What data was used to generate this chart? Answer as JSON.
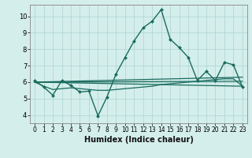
{
  "xlabel": "Humidex (Indice chaleur)",
  "xlim": [
    -0.5,
    23.5
  ],
  "ylim": [
    3.5,
    10.7
  ],
  "yticks": [
    4,
    5,
    6,
    7,
    8,
    9,
    10
  ],
  "xticks": [
    0,
    1,
    2,
    3,
    4,
    5,
    6,
    7,
    8,
    9,
    10,
    11,
    12,
    13,
    14,
    15,
    16,
    17,
    18,
    19,
    20,
    21,
    22,
    23
  ],
  "bg_color": "#d4eeeb",
  "grid_color": "#b2d8d4",
  "line_color": "#1a6b5e",
  "main_x": [
    0,
    1,
    2,
    3,
    4,
    5,
    6,
    7,
    8,
    9,
    10,
    11,
    12,
    13,
    14,
    15,
    16,
    17,
    18,
    19,
    20,
    21,
    22,
    23
  ],
  "main_y": [
    6.1,
    5.7,
    5.2,
    6.1,
    5.8,
    5.4,
    5.45,
    3.95,
    5.1,
    6.5,
    7.5,
    8.5,
    9.3,
    9.7,
    10.4,
    8.6,
    8.1,
    7.5,
    6.1,
    6.65,
    6.1,
    7.2,
    7.05,
    5.7
  ],
  "trend_lines": [
    {
      "x": [
        0,
        1,
        2,
        3,
        4,
        5,
        6,
        7,
        8,
        9,
        10,
        11,
        12,
        13,
        14,
        15,
        16,
        17,
        18,
        19,
        20,
        21,
        22,
        23
      ],
      "y": [
        6.0,
        5.75,
        5.55,
        5.6,
        5.65,
        5.6,
        5.55,
        5.5,
        5.5,
        5.55,
        5.6,
        5.65,
        5.7,
        5.75,
        5.85,
        5.9,
        5.95,
        6.0,
        6.05,
        6.1,
        6.15,
        6.2,
        6.2,
        5.75
      ]
    },
    {
      "x": [
        0,
        23
      ],
      "y": [
        6.0,
        5.75
      ]
    },
    {
      "x": [
        0,
        23
      ],
      "y": [
        6.0,
        6.05
      ]
    },
    {
      "x": [
        0,
        23
      ],
      "y": [
        6.0,
        6.3
      ]
    }
  ]
}
